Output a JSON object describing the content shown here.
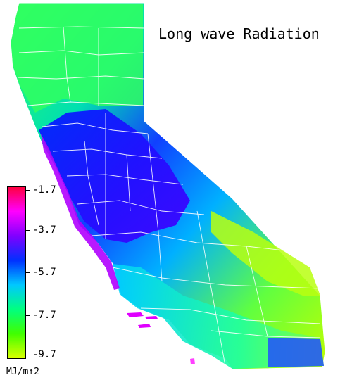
{
  "title": "Long wave Radiation",
  "legend": {
    "units": "MJ/m↑2",
    "ticks": [
      "-1.7",
      "-3.7",
      "-5.7",
      "-7.7",
      "-9.7"
    ],
    "colors": [
      "#ff0040",
      "#ff00ff",
      "#8000ff",
      "#0030ff",
      "#00c8ff",
      "#00ff80",
      "#40ff00",
      "#d8ff00"
    ]
  },
  "map": {
    "region": "California",
    "palette": {
      "coast": "#a000ff",
      "valley": "#1040ff",
      "foothills": "#00b0ff",
      "north": "#20ff60",
      "desert": "#b0ff00",
      "boundary": "#ffffff"
    }
  }
}
